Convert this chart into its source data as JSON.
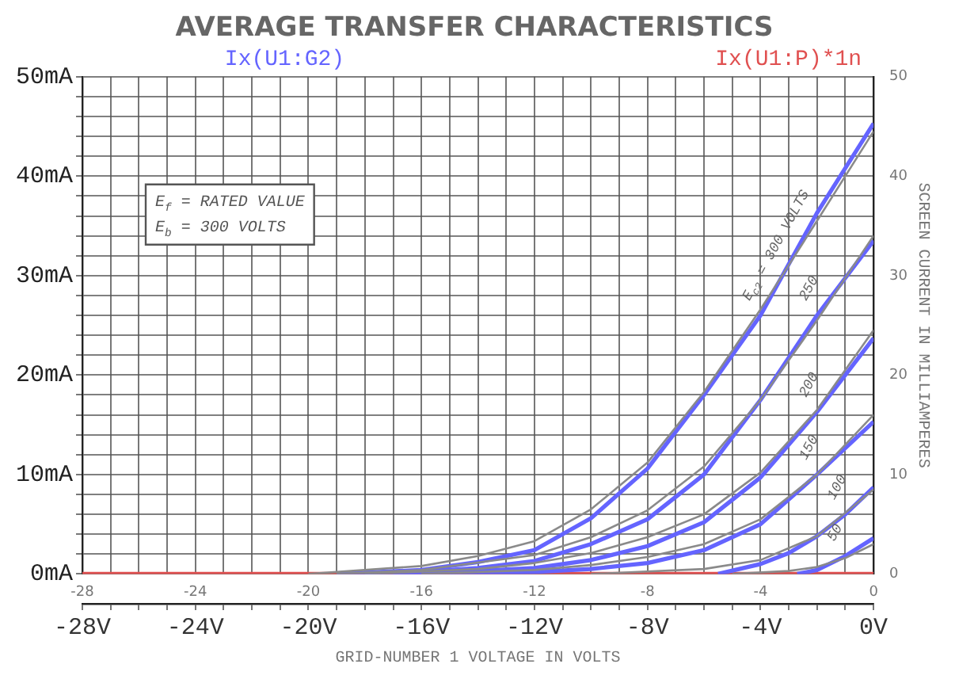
{
  "chart_data": {
    "type": "line",
    "title": "AVERAGE TRANSFER CHARACTERISTICS",
    "xlabel": "GRID-NUMBER 1 VOLTAGE IN VOLTS",
    "y2label": "SCREEN CURRENT IN MILLIAMPERES",
    "xlim": [
      -28,
      0
    ],
    "xticks": [
      {
        "value": -28,
        "label": "-28V"
      },
      {
        "value": -27,
        "label": null
      },
      {
        "value": -26,
        "label": null
      },
      {
        "value": -25,
        "label": null
      },
      {
        "value": -24,
        "label": "-24V"
      },
      {
        "value": -23,
        "label": null
      },
      {
        "value": -22,
        "label": null
      },
      {
        "value": -21,
        "label": null
      },
      {
        "value": -20,
        "label": "-20V"
      },
      {
        "value": -19,
        "label": null
      },
      {
        "value": -18,
        "label": null
      },
      {
        "value": -17,
        "label": null
      },
      {
        "value": -16,
        "label": "-16V"
      },
      {
        "value": -15,
        "label": null
      },
      {
        "value": -14,
        "label": null
      },
      {
        "value": -13,
        "label": null
      },
      {
        "value": -12,
        "label": "-12V"
      },
      {
        "value": -11,
        "label": null
      },
      {
        "value": -10,
        "label": null
      },
      {
        "value": -9,
        "label": null
      },
      {
        "value": -8,
        "label": "-8V"
      },
      {
        "value": -7,
        "label": null
      },
      {
        "value": -6,
        "label": null
      },
      {
        "value": -5,
        "label": null
      },
      {
        "value": -4,
        "label": "-4V"
      },
      {
        "value": -3,
        "label": null
      },
      {
        "value": -2,
        "label": null
      },
      {
        "value": -1,
        "label": null
      },
      {
        "value": 0,
        "label": "0V"
      }
    ],
    "x2lim": [
      -28,
      0
    ],
    "x2ticks": [
      -28,
      -24,
      -20,
      -16,
      -12,
      -8,
      -4,
      0
    ],
    "ylim": [
      0,
      50
    ],
    "yticks": [
      {
        "value": 0,
        "label": "0mA"
      },
      {
        "value": 2,
        "label": null
      },
      {
        "value": 4,
        "label": null
      },
      {
        "value": 6,
        "label": null
      },
      {
        "value": 8,
        "label": null
      },
      {
        "value": 10,
        "label": "10mA"
      },
      {
        "value": 12,
        "label": null
      },
      {
        "value": 14,
        "label": null
      },
      {
        "value": 16,
        "label": null
      },
      {
        "value": 18,
        "label": null
      },
      {
        "value": 20,
        "label": "20mA"
      },
      {
        "value": 22,
        "label": null
      },
      {
        "value": 24,
        "label": null
      },
      {
        "value": 26,
        "label": null
      },
      {
        "value": 28,
        "label": null
      },
      {
        "value": 30,
        "label": "30mA"
      },
      {
        "value": 32,
        "label": null
      },
      {
        "value": 34,
        "label": null
      },
      {
        "value": 36,
        "label": null
      },
      {
        "value": 38,
        "label": null
      },
      {
        "value": 40,
        "label": "40mA"
      },
      {
        "value": 42,
        "label": null
      },
      {
        "value": 44,
        "label": null
      },
      {
        "value": 46,
        "label": null
      },
      {
        "value": 48,
        "label": null
      },
      {
        "value": 50,
        "label": "50mA"
      }
    ],
    "y2lim": [
      0,
      50
    ],
    "y2ticks": [
      0,
      10,
      20,
      30,
      40,
      50
    ],
    "grid": true,
    "legend": "top",
    "series": [
      {
        "color": "#8a8a8a",
        "x": [
          -20,
          -16,
          -14,
          -12,
          -10,
          -8,
          -6,
          -4,
          -2,
          0
        ],
        "values": [
          0,
          0.8,
          1.8,
          3.3,
          6.5,
          11.2,
          18.3,
          26.6,
          35.5,
          44.5
        ]
      },
      {
        "color": "#8a8a8a",
        "x": [
          -19,
          -16,
          -12,
          -10,
          -8,
          -6,
          -4,
          -2,
          0
        ],
        "values": [
          0,
          0.4,
          1.9,
          3.7,
          6.4,
          10.8,
          17.5,
          25.5,
          34
        ]
      },
      {
        "color": "#8a8a8a",
        "x": [
          -18,
          -14,
          -12,
          -10,
          -8,
          -6,
          -4,
          -2,
          0
        ],
        "values": [
          0,
          0.5,
          1.1,
          2.1,
          3.7,
          6,
          10.2,
          16.5,
          24.5
        ]
      },
      {
        "color": "#8a8a8a",
        "x": [
          -16,
          -12,
          -10,
          -8,
          -6,
          -4,
          -2,
          0
        ],
        "values": [
          0,
          0.4,
          0.9,
          1.7,
          3,
          5.5,
          10,
          16
        ]
      },
      {
        "color": "#8a8a8a",
        "x": [
          -10,
          -6,
          -4,
          -2,
          0
        ],
        "values": [
          0,
          0.5,
          1.4,
          3.8,
          8.5
        ]
      },
      {
        "color": "#8a8a8a",
        "x": [
          -5,
          -3,
          -2,
          -1,
          0
        ],
        "values": [
          0,
          0.3,
          0.7,
          1.6,
          3
        ]
      },
      {
        "name": "Ix(U1:G2)",
        "color": "#6464ff",
        "x": [
          -19,
          -16,
          -14,
          -12,
          -10,
          -8,
          -6,
          -4,
          -2,
          0
        ],
        "values": [
          0,
          0.4,
          1.2,
          2.4,
          5.6,
          10.6,
          18,
          26,
          36.3,
          45.3
        ]
      },
      {
        "color": "#6464ff",
        "x": [
          -18,
          -16,
          -14,
          -12,
          -10,
          -8,
          -6,
          -4,
          -2,
          0
        ],
        "values": [
          0,
          0.2,
          0.6,
          1.3,
          3,
          5.5,
          10,
          17.5,
          26,
          33.5
        ]
      },
      {
        "color": "#6464ff",
        "x": [
          -17,
          -14,
          -12,
          -10,
          -8,
          -6,
          -4,
          -2,
          0
        ],
        "values": [
          0,
          0.3,
          0.6,
          1.4,
          2.8,
          5.2,
          9.7,
          16.3,
          23.7
        ]
      },
      {
        "color": "#6464ff",
        "x": [
          -15,
          -12,
          -10,
          -8,
          -6,
          -4,
          -2,
          0
        ],
        "values": [
          0,
          0.2,
          0.5,
          1.1,
          2.4,
          5,
          10,
          15.3
        ]
      },
      {
        "color": "#6464ff",
        "x": [
          -5.5,
          -4,
          -3,
          -2,
          -1,
          0
        ],
        "values": [
          0,
          1,
          2.1,
          3.8,
          6,
          8.7
        ]
      },
      {
        "color": "#6464ff",
        "x": [
          -2.7,
          -2,
          -1,
          0
        ],
        "values": [
          0,
          0.4,
          1.8,
          3.6
        ]
      },
      {
        "name": "Ix(U1:P)*1n",
        "color": "#e05050",
        "x": [
          -28,
          0
        ],
        "values": [
          0,
          0
        ]
      }
    ],
    "annotations": [
      "E$_{f}$ = RATED VALUE",
      "E$_{b}$ = 300 VOLTS",
      {
        "text": "E$_{c2}$ = 300 VOLTS",
        "x": -4,
        "y": 26
      },
      {
        "text": "250",
        "x": -2,
        "y": 26
      },
      {
        "text": "200",
        "x": -2,
        "y": 16.3
      },
      {
        "text": "150",
        "x": -2,
        "y": 10
      },
      {
        "text": "100",
        "x": -1,
        "y": 6
      },
      {
        "text": "50",
        "x": -1,
        "y": 1.8
      }
    ]
  }
}
